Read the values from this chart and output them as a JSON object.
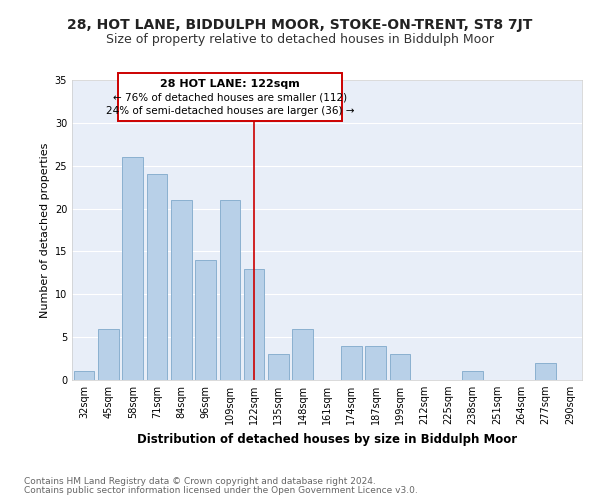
{
  "title": "28, HOT LANE, BIDDULPH MOOR, STOKE-ON-TRENT, ST8 7JT",
  "subtitle": "Size of property relative to detached houses in Biddulph Moor",
  "xlabel": "Distribution of detached houses by size in Biddulph Moor",
  "ylabel": "Number of detached properties",
  "categories": [
    "32sqm",
    "45sqm",
    "58sqm",
    "71sqm",
    "84sqm",
    "96sqm",
    "109sqm",
    "122sqm",
    "135sqm",
    "148sqm",
    "161sqm",
    "174sqm",
    "187sqm",
    "199sqm",
    "212sqm",
    "225sqm",
    "238sqm",
    "251sqm",
    "264sqm",
    "277sqm",
    "290sqm"
  ],
  "values": [
    1,
    6,
    26,
    24,
    21,
    14,
    21,
    13,
    3,
    6,
    0,
    4,
    4,
    3,
    0,
    0,
    1,
    0,
    0,
    2,
    0
  ],
  "bar_color": "#b8d0e8",
  "bar_edge_color": "#8ab0d0",
  "highlight_index": 7,
  "highlight_line_color": "#cc0000",
  "ylim": [
    0,
    35
  ],
  "yticks": [
    0,
    5,
    10,
    15,
    20,
    25,
    30,
    35
  ],
  "annotation_title": "28 HOT LANE: 122sqm",
  "annotation_line1": "← 76% of detached houses are smaller (112)",
  "annotation_line2": "24% of semi-detached houses are larger (36) →",
  "annotation_box_color": "#ffffff",
  "annotation_box_edge": "#cc0000",
  "footer_line1": "Contains HM Land Registry data © Crown copyright and database right 2024.",
  "footer_line2": "Contains public sector information licensed under the Open Government Licence v3.0.",
  "bg_color": "#e8eef8",
  "grid_color": "#ffffff",
  "fig_bg_color": "#ffffff",
  "title_fontsize": 10,
  "subtitle_fontsize": 9,
  "xlabel_fontsize": 8.5,
  "ylabel_fontsize": 8,
  "tick_fontsize": 7,
  "footer_fontsize": 6.5,
  "ann_title_fontsize": 8,
  "ann_text_fontsize": 7.5
}
